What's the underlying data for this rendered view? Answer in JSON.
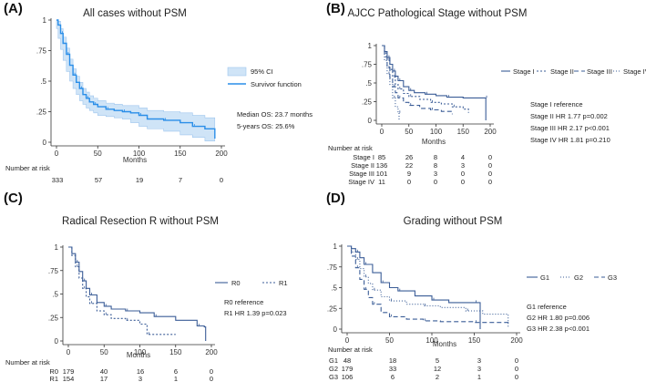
{
  "panels": {
    "A": {
      "label": "(A)",
      "title": "All cases without PSM",
      "xlabel": "Months",
      "legend": [
        "95% CI",
        "Survivor function"
      ],
      "stats": [
        "Median OS: 23.7 months",
        "5-years OS: 25.6%"
      ],
      "risk_header": "Number at risk",
      "risk_rows": [
        {
          "name": "",
          "values": [
            "333",
            "57",
            "19",
            "7",
            "0"
          ]
        }
      ]
    },
    "B": {
      "label": "(B)",
      "title": "AJCC Pathological Stage without PSM",
      "xlabel": "Months",
      "legend": [
        "Stage I",
        "Stage II",
        "Stage III",
        "Stage IV"
      ],
      "stats": [
        "Stage I reference",
        "Stage II HR 1.77 p=0.002",
        "Stage III HR 2.17 p<0.001",
        "Stage IV HR 1.81 p=0.210"
      ],
      "risk_header": "Number at risk",
      "risk_rows": [
        {
          "name": "Stage I",
          "values": [
            "85",
            "26",
            "8",
            "4",
            "0"
          ]
        },
        {
          "name": "Stage II",
          "values": [
            "136",
            "22",
            "8",
            "3",
            "0"
          ]
        },
        {
          "name": "Stage III",
          "values": [
            "101",
            "9",
            "3",
            "0",
            "0"
          ]
        },
        {
          "name": "Stage IV",
          "values": [
            "11",
            "0",
            "0",
            "0",
            "0"
          ]
        }
      ]
    },
    "C": {
      "label": "(C)",
      "title": "Radical Resection R without PSM",
      "xlabel": "Months",
      "legend": [
        "R0",
        "R1"
      ],
      "stats": [
        "R0 reference",
        "R1 HR 1.39 p=0.023"
      ],
      "risk_header": "Number at risk",
      "risk_rows": [
        {
          "name": "R0",
          "values": [
            "179",
            "40",
            "16",
            "6",
            "0"
          ]
        },
        {
          "name": "R1",
          "values": [
            "154",
            "17",
            "3",
            "1",
            "0"
          ]
        }
      ]
    },
    "D": {
      "label": "(D)",
      "title": "Grading without PSM",
      "xlabel": "Months",
      "legend": [
        "G1",
        "G2",
        "G3"
      ],
      "stats": [
        "G1 reference",
        "G2 HR 1.80 p=0.006",
        "G3 HR 2.38 p<0.001"
      ],
      "risk_header": "Number at risk",
      "risk_rows": [
        {
          "name": "G1",
          "values": [
            "48",
            "18",
            "5",
            "3",
            "0"
          ]
        },
        {
          "name": "G2",
          "values": [
            "179",
            "33",
            "12",
            "3",
            "0"
          ]
        },
        {
          "name": "G3",
          "values": [
            "106",
            "6",
            "2",
            "1",
            "0"
          ]
        }
      ]
    }
  },
  "chart_data": [
    {
      "type": "line",
      "panel": "A",
      "title": "All cases without PSM",
      "xlabel": "Months",
      "ylabel": "",
      "xlim": [
        0,
        200
      ],
      "ylim": [
        0,
        1
      ],
      "xticks": [
        0,
        50,
        100,
        150,
        200
      ],
      "yticks": [
        "0",
        ".25",
        ".5",
        ".75",
        "1"
      ],
      "series": [
        {
          "name": "Survivor function",
          "color": "#2a8ee8",
          "x": [
            0,
            2,
            5,
            8,
            12,
            16,
            20,
            24,
            28,
            32,
            36,
            40,
            45,
            50,
            60,
            70,
            80,
            90,
            100,
            110,
            130,
            150,
            165,
            180,
            192
          ],
          "y": [
            1,
            0.96,
            0.89,
            0.81,
            0.72,
            0.63,
            0.55,
            0.49,
            0.44,
            0.39,
            0.36,
            0.33,
            0.31,
            0.29,
            0.27,
            0.26,
            0.25,
            0.24,
            0.22,
            0.19,
            0.18,
            0.16,
            0.13,
            0.11,
            0.03
          ],
          "ci_lower": [
            1,
            0.93,
            0.85,
            0.76,
            0.67,
            0.58,
            0.5,
            0.44,
            0.39,
            0.34,
            0.31,
            0.28,
            0.26,
            0.24,
            0.22,
            0.21,
            0.2,
            0.19,
            0.16,
            0.13,
            0.11,
            0.09,
            0.06,
            0.04,
            0.01
          ],
          "ci_upper": [
            1,
            0.99,
            0.93,
            0.86,
            0.77,
            0.68,
            0.6,
            0.54,
            0.49,
            0.44,
            0.41,
            0.38,
            0.36,
            0.34,
            0.32,
            0.31,
            0.3,
            0.3,
            0.28,
            0.26,
            0.25,
            0.24,
            0.22,
            0.2,
            0.12
          ]
        }
      ]
    },
    {
      "type": "line",
      "panel": "B",
      "title": "AJCC Pathological Stage without PSM",
      "xlabel": "Months",
      "ylabel": "",
      "xlim": [
        0,
        200
      ],
      "ylim": [
        0,
        1
      ],
      "xticks": [
        0,
        50,
        100,
        150,
        200
      ],
      "yticks": [
        "0",
        ".25",
        ".5",
        ".75",
        "1"
      ],
      "series": [
        {
          "name": "Stage I",
          "dash": "",
          "x": [
            0,
            5,
            10,
            15,
            20,
            25,
            30,
            40,
            50,
            60,
            80,
            100,
            120,
            150,
            190,
            192
          ],
          "y": [
            1,
            0.92,
            0.84,
            0.75,
            0.66,
            0.59,
            0.53,
            0.45,
            0.4,
            0.37,
            0.35,
            0.33,
            0.31,
            0.3,
            0.3,
            0.0
          ]
        },
        {
          "name": "Stage II",
          "dash": "2,2",
          "x": [
            0,
            5,
            10,
            15,
            20,
            25,
            30,
            40,
            50,
            70,
            90,
            110,
            130,
            150,
            160
          ],
          "y": [
            1,
            0.9,
            0.8,
            0.68,
            0.58,
            0.48,
            0.42,
            0.36,
            0.32,
            0.28,
            0.24,
            0.22,
            0.18,
            0.15,
            0.1
          ]
        },
        {
          "name": "Stage III",
          "dash": "5,3",
          "x": [
            0,
            5,
            10,
            15,
            20,
            25,
            30,
            40,
            50,
            70,
            90,
            110,
            130
          ],
          "y": [
            1,
            0.85,
            0.7,
            0.57,
            0.45,
            0.37,
            0.3,
            0.24,
            0.2,
            0.16,
            0.14,
            0.12,
            0.08
          ]
        },
        {
          "name": "Stage IV",
          "dash": "1,2",
          "x": [
            0,
            5,
            10,
            15,
            20,
            25,
            30,
            32
          ],
          "y": [
            1,
            0.8,
            0.62,
            0.48,
            0.3,
            0.18,
            0.1,
            0.0
          ]
        }
      ]
    },
    {
      "type": "line",
      "panel": "C",
      "title": "Radical Resection R without PSM",
      "xlabel": "Months",
      "ylabel": "",
      "xlim": [
        0,
        200
      ],
      "ylim": [
        0,
        1
      ],
      "xticks": [
        0,
        50,
        100,
        150,
        200
      ],
      "yticks": [
        "0",
        ".25",
        ".5",
        ".75",
        "1"
      ],
      "series": [
        {
          "name": "R0",
          "dash": "",
          "x": [
            0,
            5,
            10,
            15,
            20,
            25,
            30,
            40,
            50,
            60,
            80,
            100,
            120,
            150,
            180,
            190,
            192
          ],
          "y": [
            1,
            0.93,
            0.84,
            0.74,
            0.64,
            0.56,
            0.49,
            0.41,
            0.37,
            0.34,
            0.32,
            0.3,
            0.26,
            0.22,
            0.16,
            0.15,
            0.0
          ]
        },
        {
          "name": "R1",
          "dash": "2,2",
          "x": [
            0,
            5,
            10,
            15,
            20,
            25,
            30,
            40,
            50,
            60,
            80,
            100,
            110,
            150
          ],
          "y": [
            1,
            0.91,
            0.79,
            0.67,
            0.56,
            0.47,
            0.4,
            0.32,
            0.28,
            0.24,
            0.22,
            0.18,
            0.07,
            0.07
          ]
        }
      ]
    },
    {
      "type": "line",
      "panel": "D",
      "title": "Grading without PSM",
      "xlabel": "Months",
      "ylabel": "",
      "xlim": [
        0,
        200
      ],
      "ylim": [
        0,
        1
      ],
      "xticks": [
        0,
        50,
        100,
        150,
        200
      ],
      "yticks": [
        "0",
        ".25",
        ".5",
        ".75",
        "1"
      ],
      "series": [
        {
          "name": "G1",
          "dash": "",
          "x": [
            0,
            5,
            10,
            15,
            20,
            30,
            40,
            50,
            60,
            80,
            100,
            120,
            150,
            155,
            157
          ],
          "y": [
            1,
            0.97,
            0.93,
            0.86,
            0.78,
            0.68,
            0.56,
            0.5,
            0.46,
            0.4,
            0.35,
            0.32,
            0.32,
            0.32,
            0.0
          ]
        },
        {
          "name": "G2",
          "dash": "1,2",
          "x": [
            0,
            5,
            10,
            15,
            20,
            25,
            30,
            40,
            50,
            70,
            90,
            110,
            140,
            160,
            190
          ],
          "y": [
            1,
            0.93,
            0.84,
            0.73,
            0.63,
            0.55,
            0.47,
            0.39,
            0.34,
            0.3,
            0.28,
            0.26,
            0.22,
            0.18,
            0.03
          ]
        },
        {
          "name": "G3",
          "dash": "5,3",
          "x": [
            0,
            5,
            10,
            15,
            20,
            25,
            30,
            40,
            50,
            70,
            90,
            110,
            150,
            190
          ],
          "y": [
            1,
            0.88,
            0.74,
            0.6,
            0.48,
            0.38,
            0.3,
            0.2,
            0.15,
            0.12,
            0.1,
            0.09,
            0.08,
            0.05
          ]
        }
      ]
    }
  ]
}
